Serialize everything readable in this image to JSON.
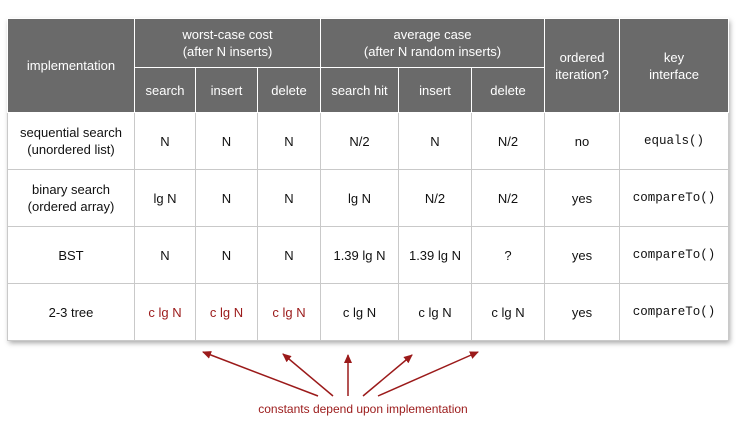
{
  "headers": {
    "implementation": "implementation",
    "worst_case": [
      "worst-case cost",
      "(after N inserts)"
    ],
    "average_case": [
      "average case",
      "(after N random inserts)"
    ],
    "ordered": [
      "ordered",
      "iteration?"
    ],
    "key": [
      "key",
      "interface"
    ],
    "sub": [
      "search",
      "insert",
      "delete",
      "search hit",
      "insert",
      "delete"
    ]
  },
  "rows": [
    {
      "impl": [
        "sequential search",
        "(unordered list)"
      ],
      "vals": [
        "N",
        "N",
        "N",
        "N/2",
        "N",
        "N/2"
      ],
      "ordered": "no",
      "key": "equals()"
    },
    {
      "impl": [
        "binary search",
        "(ordered array)"
      ],
      "vals": [
        "lg N",
        "N",
        "N",
        "lg N",
        "N/2",
        "N/2"
      ],
      "ordered": "yes",
      "key": "compareTo()"
    },
    {
      "impl": [
        "BST"
      ],
      "vals": [
        "N",
        "N",
        "N",
        "1.39 lg N",
        "1.39 lg N",
        "?"
      ],
      "ordered": "yes",
      "key": "compareTo()"
    },
    {
      "impl": [
        "2-3 tree"
      ],
      "vals": [
        "c lg N",
        "c lg N",
        "c lg N",
        "c lg N",
        "c lg N",
        "c lg N"
      ],
      "ordered": "yes",
      "key": "compareTo()"
    }
  ],
  "note": "constants depend upon implementation",
  "colors": {
    "header_bg": "#6a6a6a",
    "accent": "#9b1a1a",
    "grid": "#c9c9c9"
  }
}
